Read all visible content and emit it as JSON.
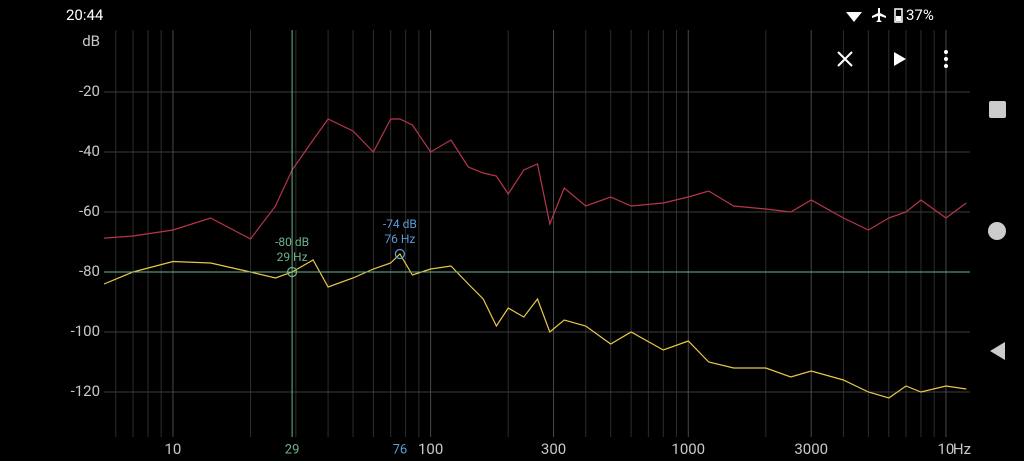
{
  "status": {
    "time": "20:44",
    "battery": "37%"
  },
  "chart_data": {
    "type": "line",
    "y_unit": "dB",
    "x_unit": "Hz",
    "xscale": "log",
    "grid": true,
    "x": [
      5.4,
      7,
      10,
      14,
      20,
      25,
      29,
      35,
      40,
      50,
      60,
      70,
      76,
      85,
      100,
      120,
      140,
      160,
      180,
      200,
      230,
      260,
      290,
      330,
      400,
      500,
      600,
      800,
      1000,
      1200,
      1500,
      2000,
      2500,
      3000,
      4000,
      5000,
      6000,
      7000,
      8000,
      10000,
      12000
    ],
    "series": [
      {
        "color": "#b8354a",
        "values": [
          -68.7,
          -68,
          -66,
          -62,
          -69,
          -58,
          -46,
          -36,
          -29,
          -33,
          -40,
          -29,
          -29,
          -31,
          -40,
          -36,
          -45,
          -47,
          -48,
          -54,
          -46,
          -44,
          -64,
          -52,
          -58,
          -55,
          -58,
          -57,
          -55,
          -53,
          -58,
          -59,
          -60,
          -56,
          -62,
          -66,
          -62,
          -60,
          -56,
          -62,
          -57
        ]
      },
      {
        "color": "#e8c84a",
        "values": [
          -84,
          -80,
          -76.5,
          -77,
          -80,
          -82,
          -80,
          -76,
          -85,
          -82,
          -79,
          -77,
          -74,
          -81,
          -79,
          -78,
          -84,
          -89,
          -98,
          -92,
          -95,
          -89,
          -100,
          -96,
          -98,
          -104,
          -100,
          -106,
          -103,
          -110,
          -112,
          -112,
          -115,
          -113,
          -116,
          -120,
          -122,
          -118,
          -120,
          -118,
          -119
        ]
      }
    ],
    "xlim": [
      5.4,
      12400
    ],
    "ylim": [
      -135,
      0
    ],
    "yticks": [
      -20,
      -40,
      -60,
      -80,
      -100,
      -120
    ],
    "xticks": [
      10,
      100,
      300,
      1000,
      3000,
      {
        "value": 10000,
        "label": "10"
      }
    ],
    "xminorticks": [
      6,
      7,
      8,
      9,
      20,
      30,
      40,
      50,
      60,
      70,
      80,
      90,
      200,
      400,
      500,
      600,
      700,
      800,
      900,
      2000,
      4000,
      5000,
      6000,
      7000,
      8000,
      9000
    ],
    "cursors": [
      {
        "x": 29,
        "y": -80,
        "color": "#6db38a",
        "texts": [
          "-80 dB",
          "29 Hz"
        ],
        "lines": true
      },
      {
        "x": 76,
        "y": -74,
        "color": "#5b9bd5",
        "texts": [
          "-74 dB",
          "76 Hz"
        ],
        "lines": false
      }
    ]
  }
}
